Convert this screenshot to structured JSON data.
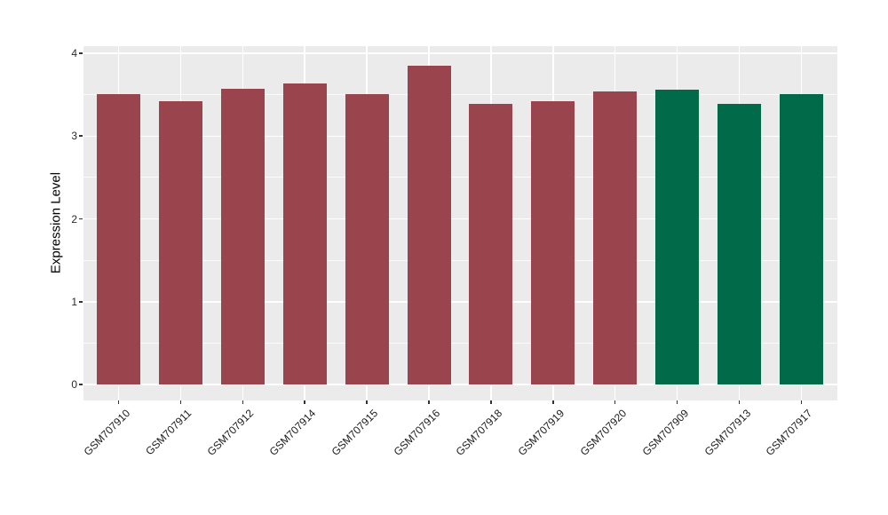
{
  "chart_data": {
    "type": "bar",
    "title": "",
    "xlabel": "",
    "ylabel": "Expression Level",
    "categories": [
      "GSM707910",
      "GSM707911",
      "GSM707912",
      "GSM707914",
      "GSM707915",
      "GSM707916",
      "GSM707918",
      "GSM707919",
      "GSM707920",
      "GSM707909",
      "GSM707913",
      "GSM707917"
    ],
    "values": [
      3.51,
      3.42,
      3.57,
      3.64,
      3.51,
      3.85,
      3.39,
      3.42,
      3.54,
      3.56,
      3.39,
      3.51
    ],
    "bar_colors": [
      "#9A444E",
      "#9A444E",
      "#9A444E",
      "#9A444E",
      "#9A444E",
      "#9A444E",
      "#9A444E",
      "#9A444E",
      "#9A444E",
      "#016A49",
      "#016A49",
      "#016A49"
    ],
    "ylim": [
      -0.19,
      4.08
    ],
    "yticks": [
      0,
      1,
      2,
      3,
      4
    ],
    "ytick_labels": [
      "0",
      "1",
      "2",
      "3",
      "4"
    ],
    "minor_yticks": [
      0.5,
      1.5,
      2.5,
      3.5
    ],
    "x_tick_rotation_deg": 45,
    "grid": "on",
    "legend_position": "none",
    "panel_background": "#EBEBEB",
    "major_grid_color": "#FFFFFF",
    "minor_grid_color": "#FFFFFF",
    "tick_mark_color": "#333333",
    "axis_text_color": "#1a1a1a"
  }
}
